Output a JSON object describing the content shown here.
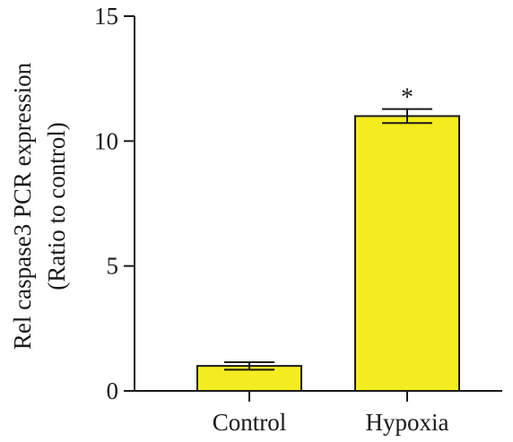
{
  "chart_data": {
    "type": "bar",
    "categories": [
      "Control",
      "Hypoxia"
    ],
    "values": [
      1.0,
      11.0
    ],
    "errors": [
      0.15,
      0.28
    ],
    "annotations": [
      "",
      "*"
    ],
    "ylabel_line1": "Rel caspase3 PCR expression",
    "ylabel_line2": "(Ratio to control)",
    "ylim": [
      0,
      15
    ],
    "yticks": [
      0,
      5,
      10,
      15
    ],
    "ytick_labels": [
      "0",
      "5",
      "10",
      "15"
    ],
    "bar_color": "#f5ec1f",
    "grid": false,
    "legend": "none"
  }
}
